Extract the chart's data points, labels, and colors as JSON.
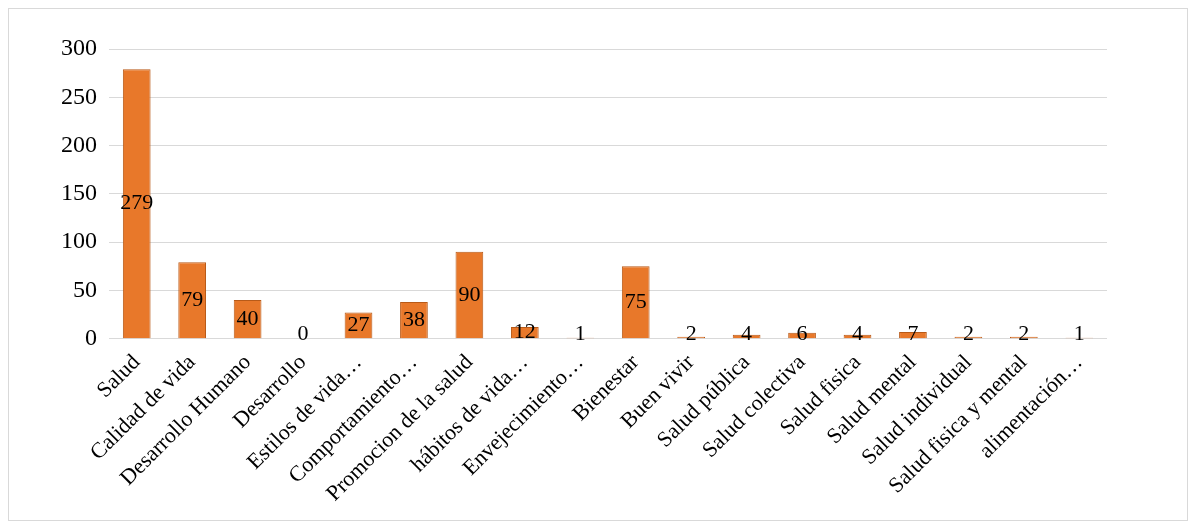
{
  "chart_data": {
    "type": "bar",
    "categories": [
      "Salud",
      "Calidad de vida",
      "Desarrollo Humano",
      "Desarrollo",
      "Estilos de vida…",
      "Comportamiento…",
      "Promocion de la salud",
      "hábitos de vida…",
      "Envejecimiento…",
      "Bienestar",
      "Buen vivir",
      "Salud pública",
      "Salud colectiva",
      "Salud fisica",
      "Salud mental",
      "Salud individual",
      "Salud fisica y mental",
      "alimentación…"
    ],
    "values": [
      279,
      79,
      40,
      0,
      27,
      38,
      90,
      12,
      1,
      75,
      2,
      4,
      6,
      4,
      7,
      2,
      2,
      1
    ],
    "color": "#e8782a",
    "ylim": [
      0,
      300
    ],
    "yticks": [
      0,
      50,
      100,
      150,
      200,
      250,
      300
    ],
    "grid": "y",
    "data_labels": true,
    "legend": false
  }
}
